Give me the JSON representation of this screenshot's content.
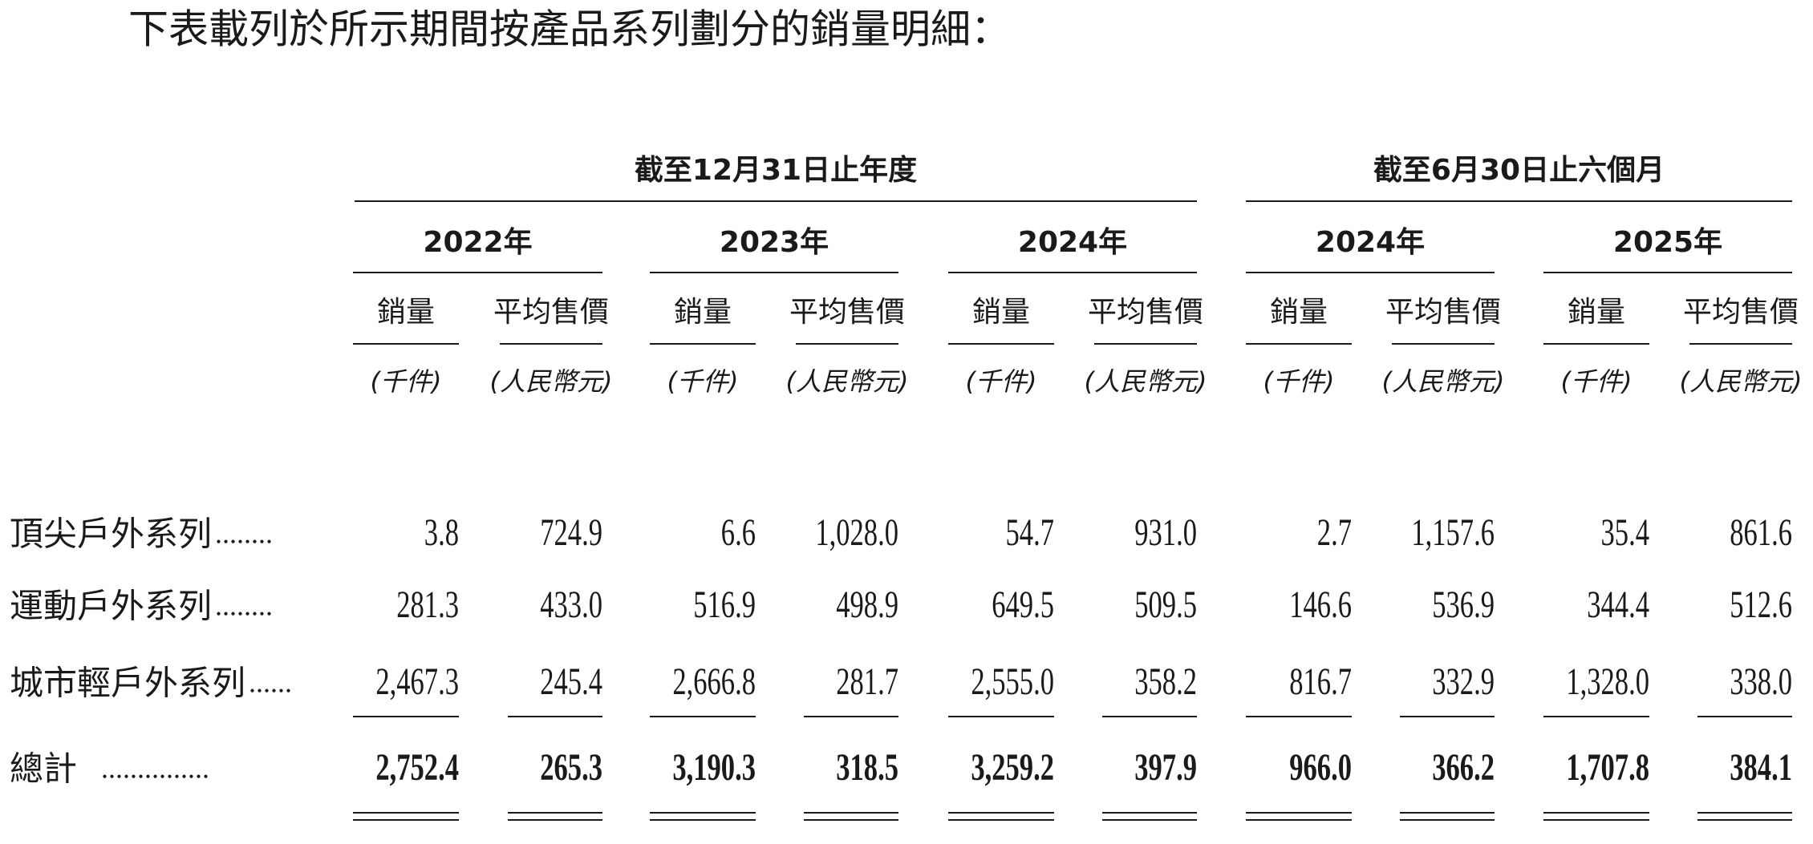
{
  "intro": "下表載列於所示期間按產品系列劃分的銷量明細：",
  "table": {
    "period_groups": [
      "截至12月31日止年度",
      "截至6月30日止六個月"
    ],
    "years": [
      "2022年",
      "2023年",
      "2024年",
      "2024年",
      "2025年"
    ],
    "column_headers": [
      "銷量",
      "平均售價"
    ],
    "units": [
      "(千件)",
      "(人民幣元)"
    ],
    "rows": [
      {
        "label": "頂尖戶外系列",
        "leader": "........",
        "cells": [
          "3.8",
          "724.9",
          "6.6",
          "1,028.0",
          "54.7",
          "931.0",
          "2.7",
          "1,157.6",
          "35.4",
          "861.6"
        ]
      },
      {
        "label": "運動戶外系列",
        "leader": "........",
        "cells": [
          "281.3",
          "433.0",
          "516.9",
          "498.9",
          "649.5",
          "509.5",
          "146.6",
          "536.9",
          "344.4",
          "512.6"
        ]
      },
      {
        "label": "城市輕戶外系列",
        "leader": "......",
        "cells": [
          "2,467.3",
          "245.4",
          "2,666.8",
          "281.7",
          "2,555.0",
          "358.2",
          "816.7",
          "332.9",
          "1,328.0",
          "338.0"
        ]
      },
      {
        "label": "總計",
        "leader": "...............",
        "cells": [
          "2,752.4",
          "265.3",
          "3,190.3",
          "318.5",
          "3,259.2",
          "397.9",
          "966.0",
          "366.2",
          "1,707.8",
          "384.1"
        ]
      }
    ]
  }
}
